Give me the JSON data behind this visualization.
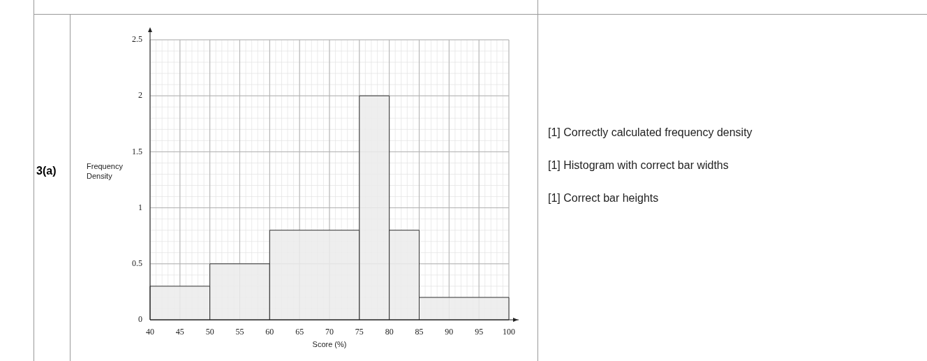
{
  "chart_data": {
    "type": "histogram",
    "xlabel": "Score (%)",
    "ylabel": "Frequency Density",
    "bins": [
      40,
      50,
      60,
      75,
      80,
      85,
      100
    ],
    "values": [
      0.3,
      0.5,
      0.8,
      2,
      0.8,
      0.2
    ],
    "color": "#ebebeb",
    "xlim": [
      40,
      100
    ],
    "xticks": [
      40,
      45,
      50,
      55,
      60,
      65,
      70,
      75,
      80,
      85,
      90,
      95,
      100
    ],
    "ylim": [
      0,
      2.5
    ],
    "yticks": [
      0,
      0.5,
      1,
      1.5,
      2,
      2.5
    ],
    "grid": true,
    "annotations": [
      "3(a)",
      "[1] Correctly calculated frequency density",
      "[1] Histogram with correct bar widths",
      "[1] Correct bar heights"
    ]
  }
}
